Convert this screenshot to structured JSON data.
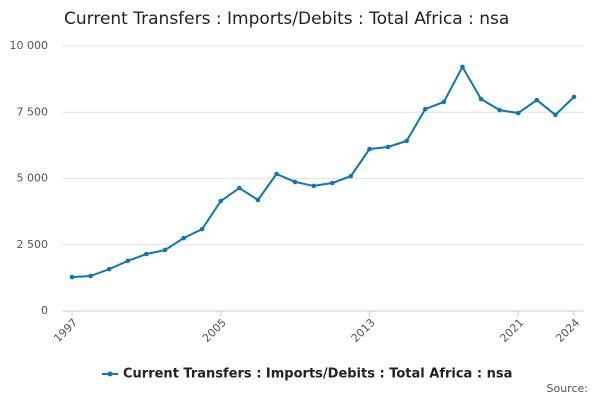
{
  "chart_data": {
    "type": "line",
    "title": "Current Transfers : Imports/Debits : Total Africa : nsa",
    "x": [
      1997,
      1998,
      1999,
      2000,
      2001,
      2002,
      2003,
      2004,
      2005,
      2006,
      2007,
      2008,
      2009,
      2010,
      2011,
      2012,
      2013,
      2014,
      2015,
      2016,
      2017,
      2018,
      2019,
      2020,
      2021,
      2022,
      2023,
      2024
    ],
    "series": [
      {
        "name": "Current Transfers : Imports/Debits : Total Africa : nsa",
        "color": "#0d77b5",
        "values": [
          1280,
          1320,
          1580,
          1890,
          2150,
          2300,
          2750,
          3090,
          4150,
          4640,
          4190,
          5170,
          4870,
          4720,
          4830,
          5090,
          6110,
          6190,
          6420,
          7620,
          7890,
          9210,
          8000,
          7580,
          7470,
          7960,
          7400,
          8080
        ]
      }
    ],
    "xlim": [
      1997,
      2024
    ],
    "xticks": [
      1997,
      2005,
      2013,
      2021,
      2024
    ],
    "ylim": [
      0,
      10000
    ],
    "yticks": [
      0,
      {
        "value": 2500,
        "label": "2 500"
      },
      {
        "value": 5000,
        "label": "5 000"
      },
      {
        "value": 7500,
        "label": "7 500"
      },
      {
        "value": 10000,
        "label": "10 000"
      }
    ],
    "grid": true,
    "legend": "bottom",
    "source": "Source:"
  }
}
